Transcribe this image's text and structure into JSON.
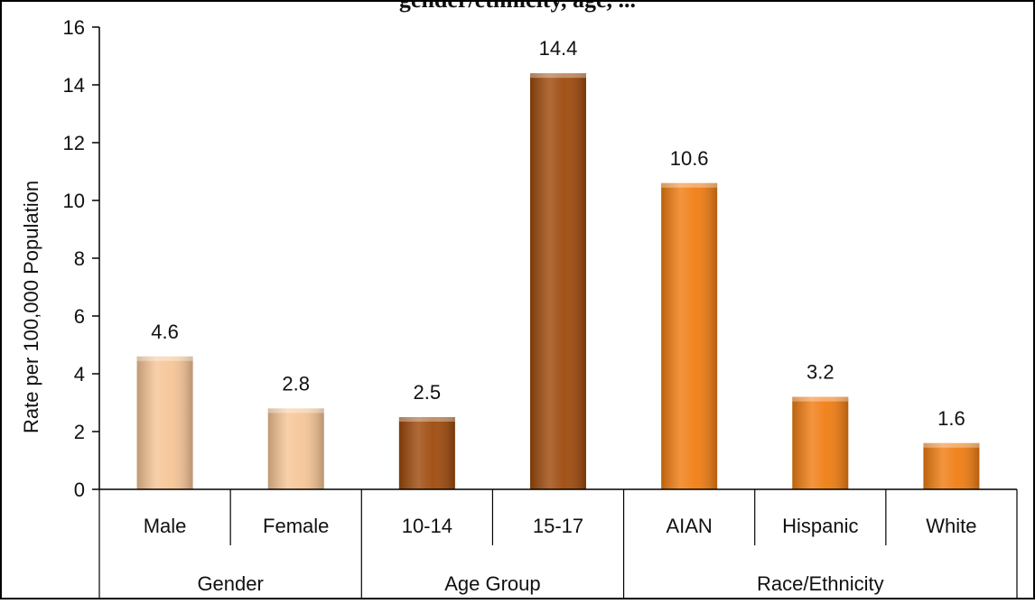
{
  "title_fragment": "gender/ethnicity, age, ...",
  "chart_data": {
    "type": "bar",
    "title": "",
    "ylabel": "Rate per 100,000 Population",
    "xlabel": "",
    "ylim": [
      0,
      16
    ],
    "yticks": [
      0,
      2,
      4,
      6,
      8,
      10,
      12,
      14,
      16
    ],
    "grid": false,
    "categories": [
      "Male",
      "Female",
      "10-14",
      "15-17",
      "AIAN",
      "Hispanic",
      "White"
    ],
    "values": [
      4.6,
      2.8,
      2.5,
      14.4,
      10.6,
      3.2,
      1.6
    ],
    "data_labels": [
      "4.6",
      "2.8",
      "2.5",
      "14.4",
      "10.6",
      "3.2",
      "1.6"
    ],
    "groups": [
      {
        "label": "Gender",
        "count": 2,
        "color": "#f6c596"
      },
      {
        "label": "Age Group",
        "count": 2,
        "color": "#9e4a0c"
      },
      {
        "label": "Race/Ethnicity",
        "count": 3,
        "color": "#f07d12"
      }
    ]
  }
}
